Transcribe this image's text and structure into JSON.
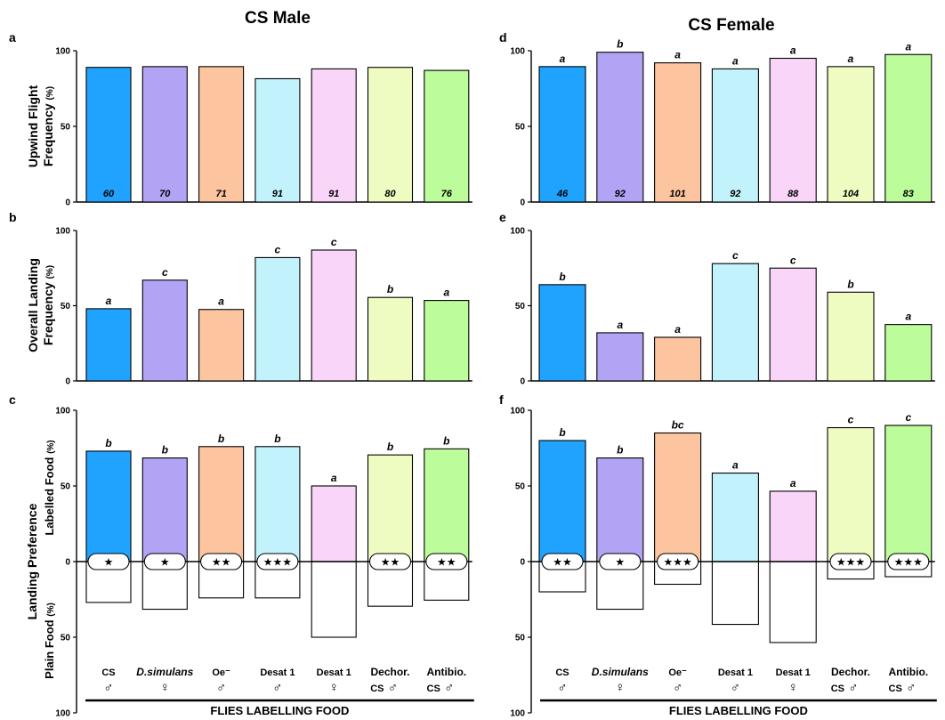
{
  "titles": {
    "left": "CS Male",
    "right": "CS Female"
  },
  "panel_letters": [
    "a",
    "b",
    "c",
    "d",
    "e",
    "f"
  ],
  "y_axis_labels": {
    "row1_line1": "Upwind Flight",
    "row1_line2": "Frequency",
    "row2_line1": "Overall Landing",
    "row2_line2": "Frequency",
    "row3_line1": "Landing Preference",
    "row3_upper": "Labelled Food",
    "row3_lower": "Plain Food",
    "unit": "(%)"
  },
  "x_axis_label": "FLIES LABELLING FOOD",
  "categories": [
    {
      "top": "CS",
      "sym": "♂",
      "prefix": "",
      "italic": false
    },
    {
      "top": "D.simulans",
      "sym": "♀",
      "prefix": "",
      "italic": true
    },
    {
      "top": "Oe⁻",
      "sym": "♂",
      "prefix": "",
      "italic": false
    },
    {
      "top": "Desat 1",
      "sym": "♂",
      "prefix": "",
      "italic": false
    },
    {
      "top": "Desat 1",
      "sym": "♀",
      "prefix": "",
      "italic": false
    },
    {
      "top": "Dechor.",
      "sym": "♂",
      "prefix": "CS",
      "italic": false
    },
    {
      "top": "Antibio.",
      "sym": "♂",
      "prefix": "CS",
      "italic": false
    }
  ],
  "colors": [
    "#1fa3ff",
    "#b3a3f5",
    "#fcc49f",
    "#c2f2fb",
    "#f9d5f9",
    "#eefcc2",
    "#bdfc9a"
  ],
  "chart_data": [
    {
      "panel": "a",
      "type": "bar",
      "ylim": [
        0,
        100
      ],
      "yticks": [
        0,
        50,
        100
      ],
      "values": [
        89,
        89.5,
        89.5,
        81.5,
        88,
        89,
        87
      ],
      "n_labels": [
        "60",
        "70",
        "71",
        "91",
        "91",
        "80",
        "76"
      ],
      "sig_labels": []
    },
    {
      "panel": "b",
      "type": "bar",
      "ylim": [
        0,
        100
      ],
      "yticks": [
        0,
        50,
        100
      ],
      "values": [
        48,
        67,
        47.5,
        82,
        87,
        55.5,
        53.5
      ],
      "n_labels": [],
      "sig_labels": [
        "a",
        "c",
        "a",
        "c",
        "c",
        "b",
        "a"
      ]
    },
    {
      "panel": "c",
      "type": "bar",
      "ylim_upper": [
        0,
        100
      ],
      "ylim_lower": [
        0,
        100
      ],
      "yticks_upper": [
        0,
        50,
        100
      ],
      "yticks_lower": [
        50,
        100
      ],
      "values_labelled": [
        73,
        68.5,
        76,
        76,
        50,
        70.5,
        74.5
      ],
      "values_plain": [
        27,
        31.5,
        24,
        24,
        50,
        29.5,
        25.5
      ],
      "sig_labels": [
        "b",
        "b",
        "b",
        "b",
        "a",
        "b",
        "b"
      ],
      "stars": [
        "★",
        "★",
        "★★",
        "★★★",
        "",
        "★★",
        "★★"
      ]
    },
    {
      "panel": "d",
      "type": "bar",
      "ylim": [
        0,
        100
      ],
      "yticks": [
        0,
        50,
        100
      ],
      "values": [
        89.5,
        99,
        92,
        88,
        95,
        89.5,
        97.5
      ],
      "n_labels": [
        "46",
        "92",
        "101",
        "92",
        "88",
        "104",
        "83"
      ],
      "sig_labels": [
        "a",
        "b",
        "a",
        "a",
        "a",
        "a",
        "a"
      ]
    },
    {
      "panel": "e",
      "type": "bar",
      "ylim": [
        0,
        100
      ],
      "yticks": [
        0,
        50,
        100
      ],
      "values": [
        64,
        32,
        29,
        78,
        75,
        59,
        37.5
      ],
      "n_labels": [],
      "sig_labels": [
        "b",
        "a",
        "a",
        "c",
        "c",
        "b",
        "a"
      ]
    },
    {
      "panel": "f",
      "type": "bar",
      "ylim_upper": [
        0,
        100
      ],
      "ylim_lower": [
        0,
        100
      ],
      "yticks_upper": [
        0,
        50,
        100
      ],
      "yticks_lower": [
        50,
        100
      ],
      "values_labelled": [
        80,
        68.5,
        85,
        58.5,
        46.5,
        88.5,
        90
      ],
      "values_plain": [
        20,
        31.5,
        15,
        41.5,
        53.5,
        11.5,
        10
      ],
      "sig_labels": [
        "b",
        "b",
        "bc",
        "a",
        "a",
        "c",
        "c"
      ],
      "stars": [
        "★★",
        "★",
        "★★★",
        "",
        "",
        "★★★",
        "★★★"
      ]
    }
  ]
}
